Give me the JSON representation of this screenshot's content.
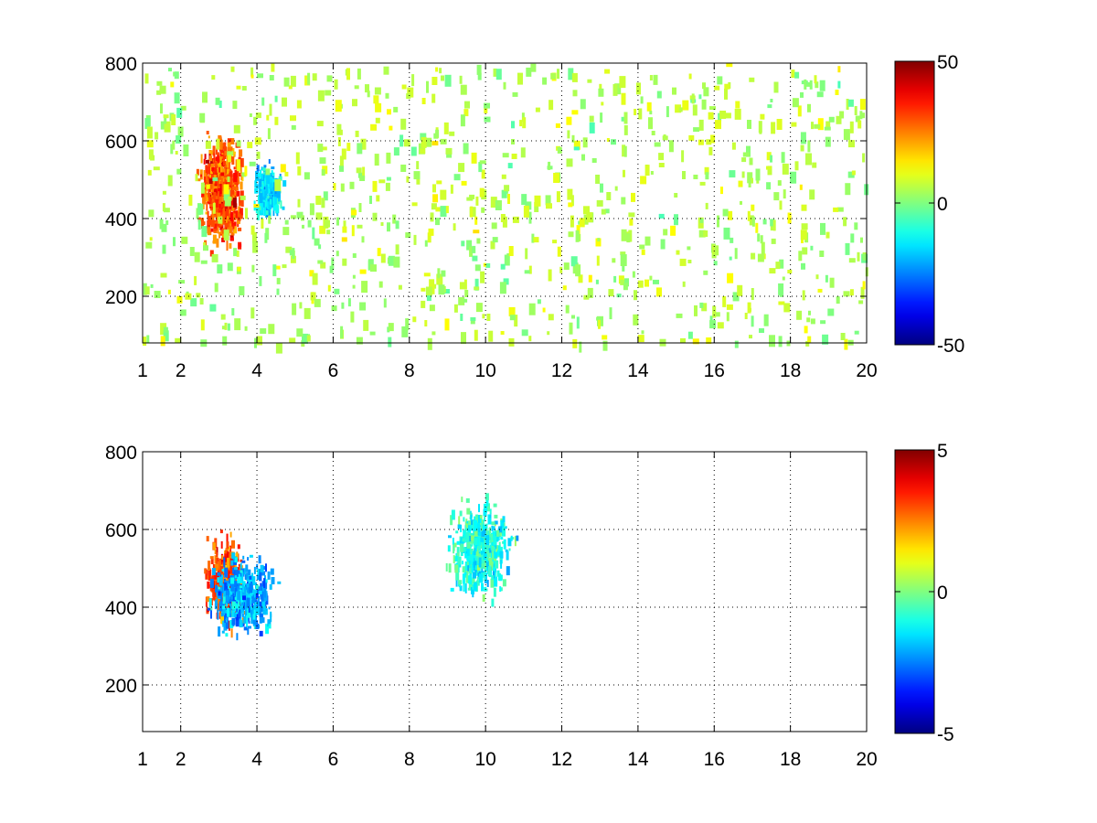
{
  "chart_data": [
    {
      "type": "heatmap",
      "title": "",
      "xlabel": "",
      "ylabel": "",
      "xlim": [
        1,
        20
      ],
      "ylim": [
        80,
        800
      ],
      "xticks": [
        "1",
        "2",
        "4",
        "6",
        "8",
        "10",
        "12",
        "14",
        "16",
        "18",
        "20"
      ],
      "xtick_values": [
        1,
        2,
        4,
        6,
        8,
        10,
        12,
        14,
        16,
        18,
        20
      ],
      "yticks": [
        "200",
        "400",
        "600",
        "800"
      ],
      "ytick_values": [
        200,
        400,
        600,
        800
      ],
      "grid": true,
      "colormap": "jet",
      "colorbar": {
        "min": -50,
        "max": 50,
        "ticks": [
          "50",
          "0",
          "-50"
        ],
        "tick_values": [
          50,
          0,
          -50
        ]
      },
      "features": [
        {
          "desc": "dense warm patch",
          "x": [
            2.3,
            3.8
          ],
          "y": [
            300,
            650
          ],
          "value": 30
        },
        {
          "desc": "cool patch",
          "x": [
            3.8,
            4.7
          ],
          "y": [
            380,
            570
          ],
          "value": -15
        },
        {
          "desc": "sparse scattered cells",
          "x": [
            1,
            20
          ],
          "y": [
            80,
            800
          ],
          "value": 5
        }
      ]
    },
    {
      "type": "heatmap",
      "title": "",
      "xlabel": "",
      "ylabel": "",
      "xlim": [
        1,
        20
      ],
      "ylim": [
        80,
        800
      ],
      "xticks": [
        "1",
        "2",
        "4",
        "6",
        "8",
        "10",
        "12",
        "14",
        "16",
        "18",
        "20"
      ],
      "xtick_values": [
        1,
        2,
        4,
        6,
        8,
        10,
        12,
        14,
        16,
        18,
        20
      ],
      "yticks": [
        "200",
        "400",
        "600",
        "800"
      ],
      "ytick_values": [
        200,
        400,
        600,
        800
      ],
      "grid": true,
      "colormap": "jet",
      "colorbar": {
        "min": -5,
        "max": 5,
        "ticks": [
          "5",
          "0",
          "-5"
        ],
        "tick_values": [
          5,
          0,
          -5
        ]
      },
      "features": [
        {
          "desc": "warm cluster",
          "x": [
            2.5,
            3.8
          ],
          "y": [
            330,
            620
          ],
          "value": 3
        },
        {
          "desc": "cool cluster",
          "x": [
            2.5,
            4.7
          ],
          "y": [
            310,
            560
          ],
          "value": -2
        },
        {
          "desc": "isolated cells",
          "x": [
            8.8,
            10.9
          ],
          "y": [
            410,
            710
          ],
          "value": -1
        }
      ]
    }
  ]
}
